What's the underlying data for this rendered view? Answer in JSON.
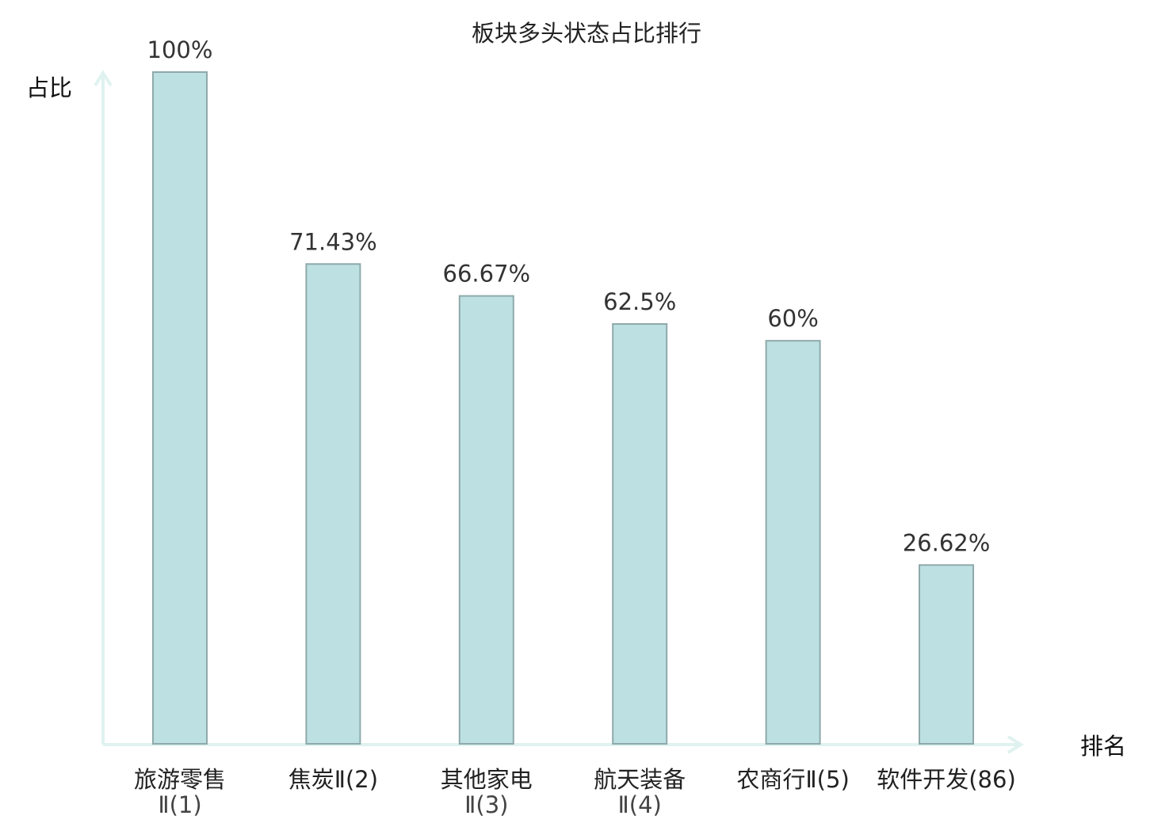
{
  "chart_data": {
    "type": "bar",
    "title": "板块多头状态占比排行",
    "ylabel": "占比",
    "xlabel": "排名",
    "ylim": [
      0,
      100
    ],
    "grid": false,
    "categories": [
      {
        "lines": [
          "旅游零售",
          "Ⅱ(1)"
        ],
        "highlight": false
      },
      {
        "lines": [
          "焦炭Ⅱ(2)"
        ],
        "highlight": false
      },
      {
        "lines": [
          "其他家电",
          "Ⅱ(3)"
        ],
        "highlight": false
      },
      {
        "lines": [
          "航天装备",
          "Ⅱ(4)"
        ],
        "highlight": false
      },
      {
        "lines": [
          "农商行Ⅱ(5)"
        ],
        "highlight": false
      },
      {
        "lines": [
          "软件开发(86)"
        ],
        "highlight": true
      }
    ],
    "values": [
      100,
      71.43,
      66.67,
      62.5,
      60,
      26.62
    ],
    "value_labels": [
      "100%",
      "71.43%",
      "66.67%",
      "62.5%",
      "60%",
      "26.62%"
    ]
  },
  "colors": {
    "bar_fill": "#bde1e3",
    "bar_stroke": "#8fa9aa",
    "axis": "#dff2ef",
    "highlight": "#e32020",
    "text": "#222222"
  }
}
